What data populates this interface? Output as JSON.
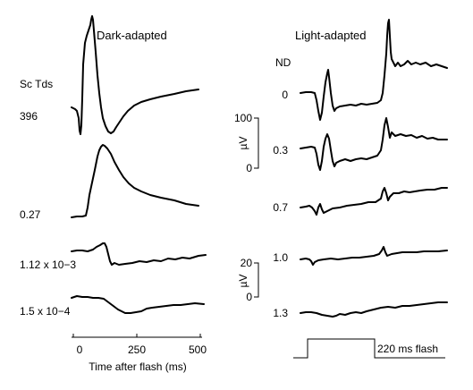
{
  "panel_left": {
    "title": "Dark-adapted",
    "column_header": "Sc Tds",
    "trace_labels": [
      "396",
      "0.27",
      "1.12 x 10−3",
      "1.5 x 10−4"
    ],
    "x_axis": {
      "label": "Time after flash (ms)",
      "ticks": [
        "0",
        "250",
        "500"
      ]
    }
  },
  "panel_right": {
    "title": "Light-adapted",
    "column_header": "ND",
    "trace_labels": [
      "0",
      "0.3",
      "0.7",
      "1.0",
      "1.3"
    ],
    "scale_bar_upper": {
      "value": "100",
      "zero": "0",
      "unit": "µV"
    },
    "scale_bar_lower": {
      "value": "20",
      "zero": "0",
      "unit": "µV"
    },
    "stimulus_label": "220 ms flash"
  }
}
